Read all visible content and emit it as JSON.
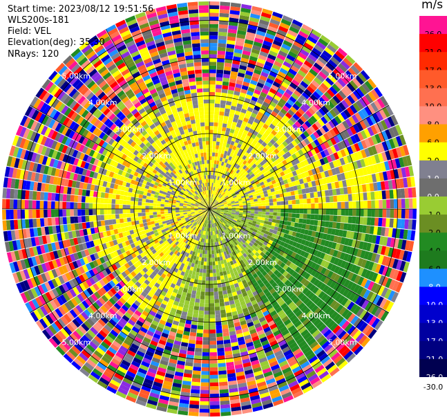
{
  "header": {
    "start_time": "Start time: 2023/08/12 19:51:56",
    "instrument": "WLS200s-181",
    "field": "Field: VEL",
    "elevation": "Elevation(deg): 35.30",
    "nrays": "NRays: 120"
  },
  "colorbar": {
    "unit": "m/s",
    "levels": [
      {
        "label": "26.0",
        "color": "#ff1493"
      },
      {
        "label": "21.0",
        "color": "#ff0000"
      },
      {
        "label": "17.0",
        "color": "#ff2a00"
      },
      {
        "label": "13.0",
        "color": "#ff5a2a"
      },
      {
        "label": "10.0",
        "color": "#ff7050"
      },
      {
        "label": "8.0",
        "color": "#ff9080"
      },
      {
        "label": "6.0",
        "color": "#ffa000"
      },
      {
        "label": "2.0",
        "color": "#ffff00"
      },
      {
        "label": "1.0",
        "color": "#808090"
      },
      {
        "label": "0.0",
        "color": "#6e6e6e"
      },
      {
        "label": "-1.0",
        "color": "#99cc33"
      },
      {
        "label": "-2.0",
        "color": "#6b8e23"
      },
      {
        "label": "-4.0",
        "color": "#228b22"
      },
      {
        "label": "-6.0",
        "color": "#1e7b1e"
      },
      {
        "label": "-8.0",
        "color": "#1e90ff"
      },
      {
        "label": "-10.0",
        "color": "#0000ff"
      },
      {
        "label": "-13.0",
        "color": "#0000cd"
      },
      {
        "label": "-17.0",
        "color": "#0000a0"
      },
      {
        "label": "-21.0",
        "color": "#000080"
      },
      {
        "label": "-26.0",
        "color": "#000050"
      },
      {
        "label": "-30.0",
        "color": "#ffffff"
      }
    ]
  },
  "chart_data": {
    "type": "heatmap",
    "projection": "polar-ppi",
    "rays": 120,
    "range_rings_km": [
      1.0,
      2.0,
      3.0,
      4.0,
      5.0
    ],
    "ring_labels": [
      "1.00km",
      "2.00km",
      "3.00km",
      "4.00km",
      "5.00km"
    ],
    "max_range_km": 5.5,
    "radial_lines_deg": [
      0,
      30,
      60,
      90,
      120,
      150,
      180,
      210,
      240,
      270,
      300,
      330
    ],
    "field": "VEL",
    "units": "m/s",
    "pattern": {
      "near_field_yellow_sector_deg": [
        200,
        80
      ],
      "near_field_green_sector_deg": [
        90,
        200
      ],
      "green_strong_sector_deg": [
        70,
        150
      ],
      "noise_beyond_km": 3.2,
      "noise_beyond_km_green_sector": 4.6
    }
  }
}
